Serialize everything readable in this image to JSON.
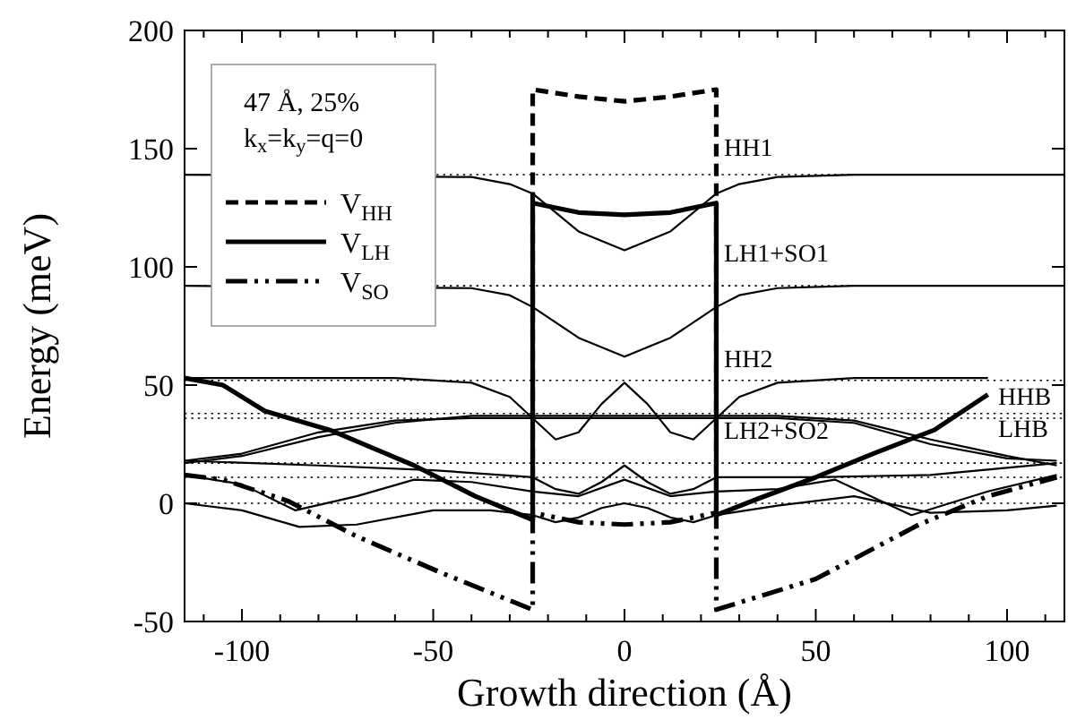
{
  "chart_data": {
    "type": "line",
    "xlabel": "Growth direction (Å)",
    "ylabel": "Energy (meV)",
    "xlim": [
      -115,
      115
    ],
    "ylim": [
      -50,
      200
    ],
    "xticks": [
      {
        "value": -110,
        "label": null
      },
      -100,
      {
        "value": -90,
        "label": null
      },
      {
        "value": -80,
        "label": null
      },
      {
        "value": -70,
        "label": null
      },
      {
        "value": -60,
        "label": null
      },
      -50,
      {
        "value": -40,
        "label": null
      },
      {
        "value": -30,
        "label": null
      },
      {
        "value": -20,
        "label": null
      },
      {
        "value": -10,
        "label": null
      },
      0,
      {
        "value": 10,
        "label": null
      },
      {
        "value": 20,
        "label": null
      },
      {
        "value": 30,
        "label": null
      },
      {
        "value": 40,
        "label": null
      },
      50,
      {
        "value": 60,
        "label": null
      },
      {
        "value": 70,
        "label": null
      },
      {
        "value": 80,
        "label": null
      },
      {
        "value": 90,
        "label": null
      },
      100,
      {
        "value": 110,
        "label": null
      }
    ],
    "yticks": [
      -50,
      0,
      50,
      100,
      150,
      200
    ],
    "grid": false,
    "legend": "top left",
    "legend_title": "47 Å, 25%\nk$_{x}$=k$_{y}$=q=0",
    "series": [
      {
        "name": "V$_{HH}$",
        "color": "#000000",
        "line_style": "dashed",
        "x": [
          -24,
          -24,
          -12,
          0,
          12,
          24,
          24
        ],
        "values": [
          -7,
          175,
          172,
          170,
          172,
          175,
          -5
        ]
      },
      {
        "name": "V$_{LH}$",
        "color": "#000000",
        "line_style": "solid",
        "x": [
          -115,
          -105,
          -94,
          -77,
          -55,
          -39,
          -24,
          -24,
          -12,
          0,
          12,
          24,
          24,
          35,
          50,
          65,
          81,
          95
        ],
        "values": [
          53,
          50,
          39,
          31,
          16,
          3,
          -7,
          127,
          123,
          122,
          123,
          127,
          -5,
          2,
          11,
          21,
          31,
          46
        ]
      },
      {
        "name": "V$_{SO}$",
        "color": "#000000",
        "line_style": "dashdotdot",
        "x": [
          -115,
          -105,
          -88,
          -70,
          -47,
          -24,
          -24,
          -12,
          0,
          12,
          24,
          24,
          50,
          77,
          95,
          113
        ],
        "values": [
          12,
          10,
          1,
          -14,
          -30,
          -45,
          -4,
          -8,
          -9,
          -8,
          -4,
          -45,
          -32,
          -9,
          3,
          11
        ]
      },
      {
        "color": "#000000",
        "line_style": "solid",
        "x": [
          -115,
          -40,
          -30,
          -24,
          -12,
          0,
          12,
          24,
          30,
          40,
          60,
          115
        ],
        "values": [
          139,
          138,
          135,
          131,
          115,
          107,
          115,
          131,
          135,
          138,
          139,
          139
        ]
      },
      {
        "color": "#000000",
        "line_style": "solid",
        "x": [
          -115,
          -40,
          -30,
          -24,
          -12,
          0,
          12,
          24,
          30,
          40,
          60,
          115
        ],
        "values": [
          92,
          91,
          88,
          83,
          70,
          62,
          70,
          83,
          88,
          91,
          92,
          92
        ]
      },
      {
        "color": "#000000",
        "line_style": "solid",
        "x": [
          -115,
          -60,
          -40,
          -30,
          -24,
          -18,
          -12,
          -6,
          0,
          6,
          12,
          18,
          24,
          30,
          40,
          60,
          95
        ],
        "values": [
          53,
          53,
          51,
          45,
          36,
          27,
          30,
          42,
          51,
          42,
          30,
          27,
          36,
          45,
          51,
          53,
          53
        ]
      },
      {
        "color": "#000000",
        "line_style": "solid",
        "x": [
          -115,
          -100,
          -80,
          -60,
          -40,
          -24,
          0,
          24,
          40,
          60,
          80,
          100,
          113
        ],
        "values": [
          17,
          20,
          28,
          34,
          37,
          37,
          37,
          37,
          37,
          35,
          27,
          20,
          16
        ]
      },
      {
        "color": "#000000",
        "line_style": "solid",
        "x": [
          -115,
          -100,
          -80,
          -60,
          -40,
          -24,
          0,
          24,
          40,
          60,
          80,
          100,
          113
        ],
        "values": [
          18,
          21,
          30,
          35,
          36,
          36,
          36,
          36,
          36,
          34,
          25,
          19,
          18
        ]
      },
      {
        "color": "#000000",
        "line_style": "solid",
        "x": [
          -115,
          -80,
          -50,
          -24,
          -18,
          -12,
          -6,
          0,
          6,
          12,
          18,
          24,
          50,
          80,
          113
        ],
        "values": [
          18,
          16,
          14,
          11,
          6,
          4,
          9,
          16,
          9,
          4,
          6,
          11,
          11,
          12,
          17
        ]
      },
      {
        "color": "#000000",
        "line_style": "solid",
        "x": [
          -115,
          -100,
          -86,
          -70,
          -55,
          -40,
          -24,
          -12,
          0,
          12,
          24,
          40,
          55,
          75,
          95,
          113
        ],
        "values": [
          12,
          8,
          -3,
          3,
          10,
          9,
          5,
          3,
          10,
          3,
          5,
          6,
          10,
          -5,
          5,
          12
        ]
      },
      {
        "color": "#000000",
        "line_style": "solid",
        "x": [
          -115,
          -100,
          -85,
          -70,
          -50,
          -35,
          -24,
          -18,
          -12,
          -6,
          0,
          6,
          12,
          18,
          24,
          40,
          60,
          80,
          100,
          113
        ],
        "values": [
          0,
          -3,
          -10,
          -9,
          -3,
          -3,
          -5,
          -8,
          -6,
          -2,
          0,
          -2,
          -6,
          -8,
          -5,
          -1,
          3,
          -4,
          -3,
          -1
        ]
      }
    ],
    "ref_lines": [
      {
        "axis": "y",
        "value": 139,
        "line_style": "dotted"
      },
      {
        "axis": "y",
        "value": 92,
        "line_style": "dotted"
      },
      {
        "axis": "y",
        "value": 52,
        "line_style": "dotted"
      },
      {
        "axis": "y",
        "value": 38,
        "line_style": "dotted"
      },
      {
        "axis": "y",
        "value": 36,
        "line_style": "dotted"
      },
      {
        "axis": "y",
        "value": 17,
        "line_style": "dotted"
      },
      {
        "axis": "y",
        "value": 11,
        "line_style": "dotted"
      },
      {
        "axis": "y",
        "value": 0,
        "line_style": "dotted"
      }
    ],
    "annotations": [
      "HH1",
      "LH1+SO1",
      "HH2",
      "HHB",
      "LHB",
      "LH2+SO2"
    ]
  }
}
